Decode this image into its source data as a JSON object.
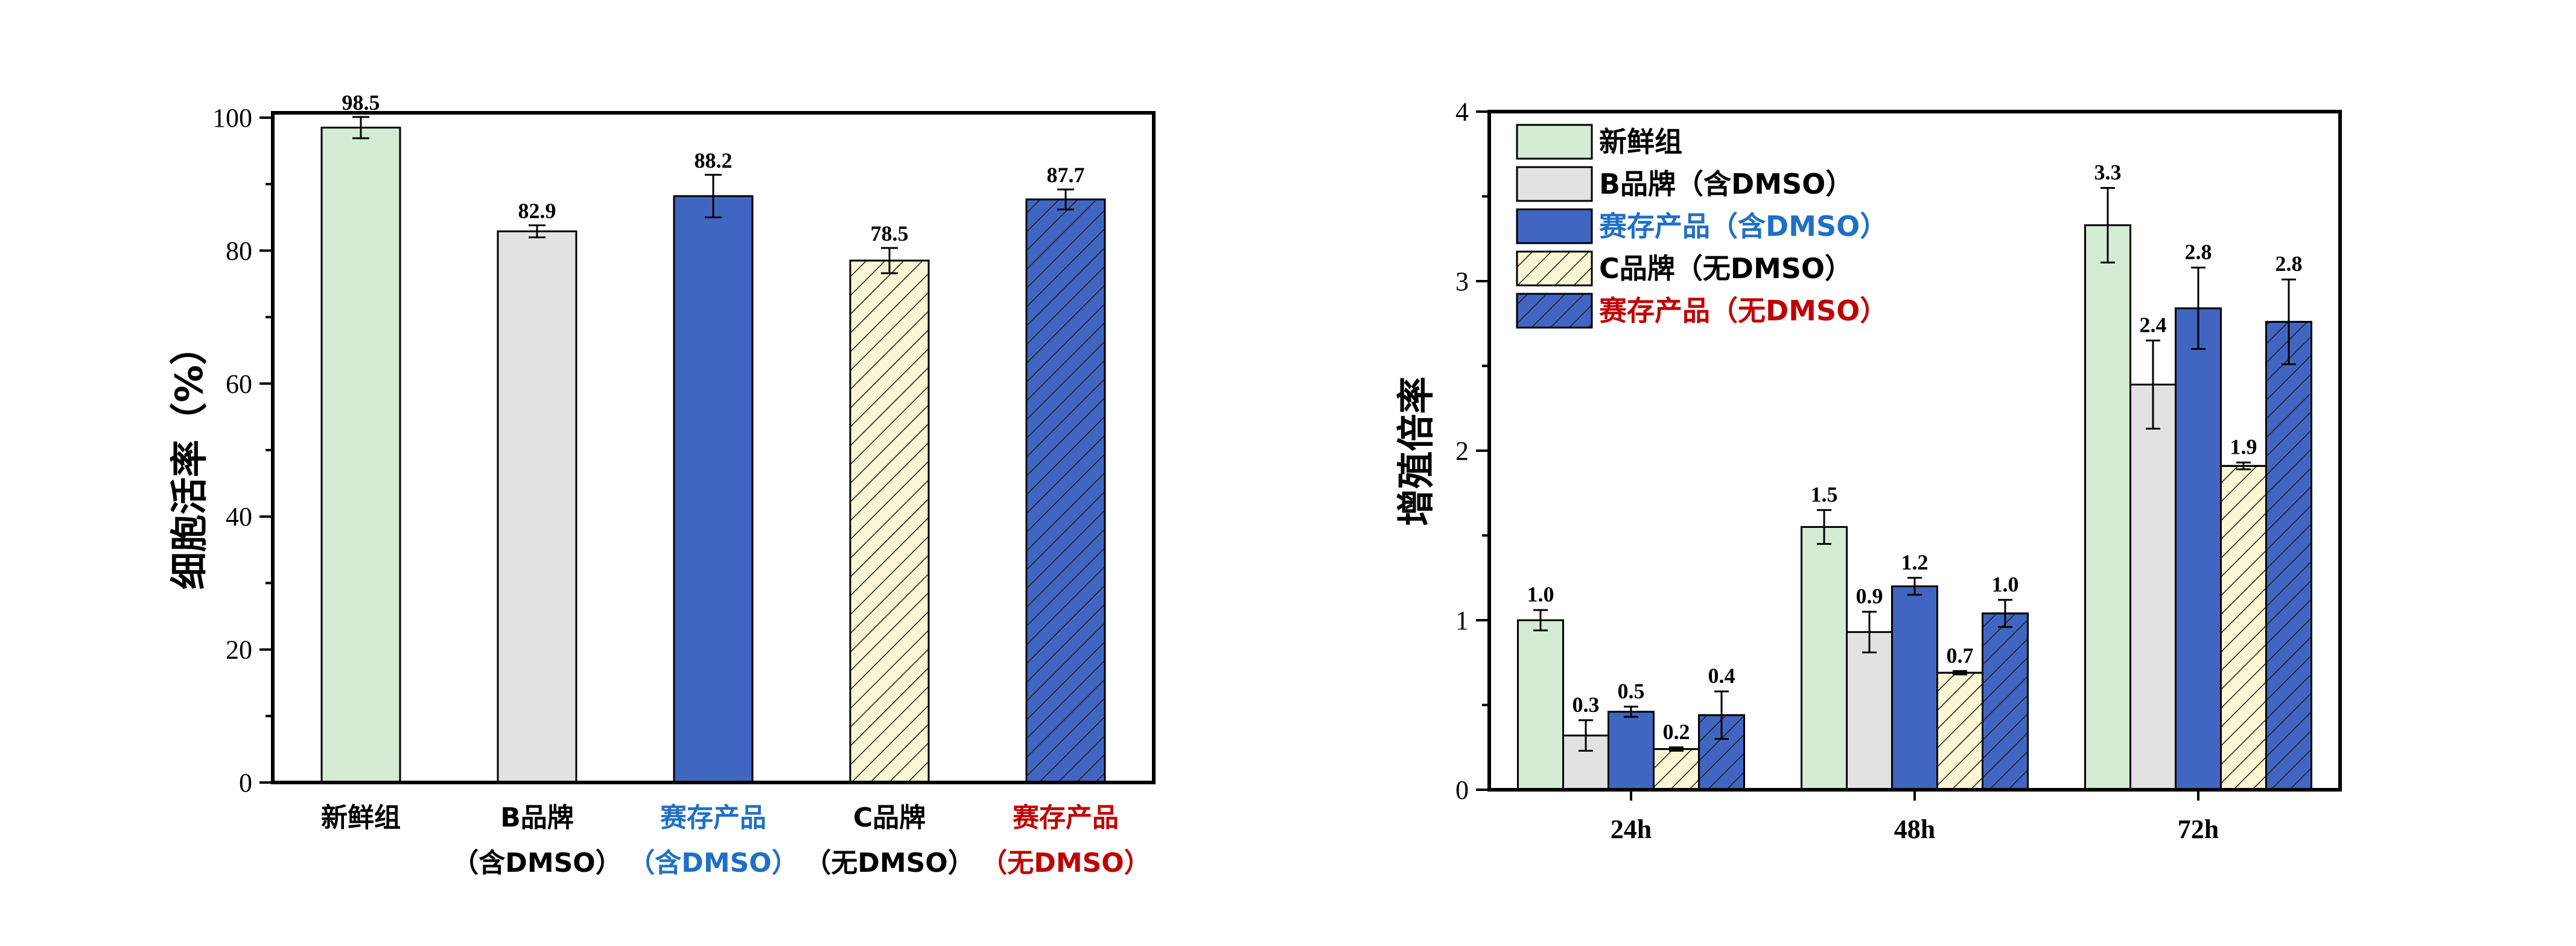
{
  "colors": {
    "fresh": "#d5ecd4",
    "brand_b": "#e2e2e2",
    "product": "#4166c2",
    "brand_c": "#fbf6d3",
    "hatch": "#000000",
    "label_blue": "#1f6fc6",
    "label_red": "#c00000",
    "label_black": "#000000"
  },
  "chart_data": [
    {
      "type": "bar",
      "ylabel": "细胞活率（%）",
      "ylim": [
        0,
        100
      ],
      "yticks": [
        0,
        20,
        40,
        60,
        80,
        100
      ],
      "categories": [
        {
          "line1": "新鲜组",
          "line2": "",
          "color": "label_black",
          "fill": "fresh",
          "hatch": false
        },
        {
          "line1": "B品牌",
          "line2": "（含DMSO）",
          "color": "label_black",
          "fill": "brand_b",
          "hatch": false
        },
        {
          "line1": "赛存产品",
          "line2": "（含DMSO）",
          "color": "label_blue",
          "fill": "product",
          "hatch": false
        },
        {
          "line1": "C品牌",
          "line2": "（无DMSO）",
          "color": "label_black",
          "fill": "brand_c",
          "hatch": true
        },
        {
          "line1": "赛存产品",
          "line2": "（无DMSO）",
          "color": "label_red",
          "fill": "product",
          "hatch": true
        }
      ],
      "values": [
        98.5,
        82.9,
        88.2,
        78.5,
        87.7
      ],
      "value_labels": [
        "98.5",
        "82.9",
        "88.2",
        "78.5",
        "87.7"
      ],
      "errors": [
        1.6,
        0.9,
        3.2,
        1.9,
        1.5
      ]
    },
    {
      "type": "bar",
      "ylabel": "增殖倍率",
      "ylim": [
        0,
        4
      ],
      "yticks": [
        0,
        1,
        2,
        3,
        4
      ],
      "categories": [
        "24h",
        "48h",
        "72h"
      ],
      "legend_position": "top-left",
      "series": [
        {
          "name": "新鲜组",
          "fill": "fresh",
          "hatch": false,
          "text_color": "label_black",
          "values": [
            1.0,
            1.55,
            3.33
          ],
          "value_labels": [
            "1.0",
            "1.5",
            "3.3"
          ],
          "errors": [
            0.06,
            0.1,
            0.22
          ]
        },
        {
          "name": "B品牌（含DMSO）",
          "fill": "brand_b",
          "hatch": false,
          "text_color": "label_black",
          "values": [
            0.32,
            0.93,
            2.39
          ],
          "value_labels": [
            "0.3",
            "0.9",
            "2.4"
          ],
          "errors": [
            0.09,
            0.12,
            0.26
          ]
        },
        {
          "name": "赛存产品（含DMSO）",
          "fill": "product",
          "hatch": false,
          "text_color": "label_blue",
          "values": [
            0.46,
            1.2,
            2.84
          ],
          "value_labels": [
            "0.5",
            "1.2",
            "2.8"
          ],
          "errors": [
            0.03,
            0.05,
            0.24
          ]
        },
        {
          "name": "C品牌（无DMSO）",
          "fill": "brand_c",
          "hatch": true,
          "text_color": "label_black",
          "values": [
            0.24,
            0.69,
            1.91
          ],
          "value_labels": [
            "0.2",
            "0.7",
            "1.9"
          ],
          "errors": [
            0.01,
            0.01,
            0.02
          ]
        },
        {
          "name": "赛存产品（无DMSO）",
          "fill": "product",
          "hatch": true,
          "text_color": "label_red",
          "values": [
            0.44,
            1.04,
            2.76
          ],
          "value_labels": [
            "0.4",
            "1.0",
            "2.8"
          ],
          "errors": [
            0.14,
            0.08,
            0.25
          ]
        }
      ]
    }
  ]
}
